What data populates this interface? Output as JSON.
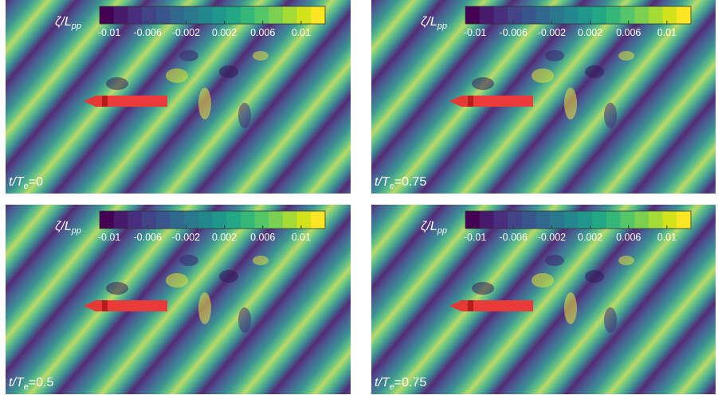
{
  "panels": [
    {
      "colorbar": {
        "label": [
          "ζ/L",
          "pp"
        ],
        "clim": [
          -0.011,
          0.0125
        ],
        "ticks": [
          -0.01,
          -0.006,
          -0.002,
          0.002,
          0.006,
          0.01
        ]
      },
      "time_label": [
        "t/T",
        "e",
        "=0"
      ]
    },
    {
      "colorbar": {
        "label": [
          "ζ/L",
          "pp"
        ],
        "clim": [
          -0.011,
          0.0125
        ],
        "ticks": [
          -0.01,
          -0.006,
          -0.002,
          0.002,
          0.006,
          0.01
        ]
      },
      "time_label": [
        "t/T",
        "e",
        "=0.75"
      ]
    },
    {
      "colorbar": {
        "label": [
          "ζ/L",
          "pp"
        ],
        "clim": [
          -0.011,
          0.0125
        ],
        "ticks": [
          -0.01,
          -0.006,
          -0.002,
          0.002,
          0.006,
          0.01
        ]
      },
      "time_label": [
        "t/T",
        "e",
        "=0.5"
      ]
    },
    {
      "colorbar": {
        "label": [
          "ζ/L",
          "pp"
        ],
        "clim": [
          -0.011,
          0.0125
        ],
        "ticks": [
          -0.01,
          -0.006,
          -0.002,
          0.002,
          0.006,
          0.01
        ]
      },
      "time_label": [
        "t/T",
        "e",
        "=0.75"
      ]
    }
  ]
}
